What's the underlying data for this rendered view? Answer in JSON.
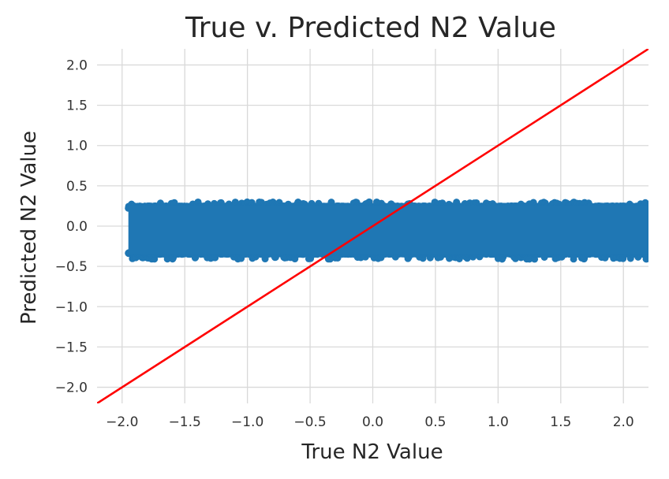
{
  "chart_data": {
    "type": "scatter",
    "title": "True v. Predicted N2 Value",
    "xlabel": "True N2 Value",
    "ylabel": "Predicted N2 Value",
    "xlim": [
      -2.2,
      2.2
    ],
    "ylim": [
      -2.2,
      2.2
    ],
    "xticks": [
      -2.0,
      -1.5,
      -1.0,
      -0.5,
      0.0,
      0.5,
      1.0,
      1.5,
      2.0
    ],
    "yticks": [
      -2.0,
      -1.5,
      -1.0,
      -0.5,
      0.0,
      0.5,
      1.0,
      1.5,
      2.0
    ],
    "xtick_labels": [
      "−2.0",
      "−1.5",
      "−1.0",
      "−0.5",
      "0.0",
      "0.5",
      "1.0",
      "1.5",
      "2.0"
    ],
    "ytick_labels": [
      "−2.0",
      "−1.5",
      "−1.0",
      "−0.5",
      "0.0",
      "0.5",
      "1.0",
      "1.5",
      "2.0"
    ],
    "grid": true,
    "series": [
      {
        "kind": "scatter-band",
        "color": "#1f77b4",
        "x_range": [
          -1.95,
          2.2
        ],
        "y_center": -0.04,
        "y_spread": [
          -0.35,
          0.25
        ],
        "y_outlier_extents": [
          -0.41,
          0.3
        ]
      },
      {
        "kind": "line",
        "color": "#ff0000",
        "x": [
          -2.2,
          2.2
        ],
        "y": [
          -2.2,
          2.2
        ]
      }
    ],
    "colors": {
      "grid": "#d9d9d9",
      "axis_text": "#333333"
    }
  }
}
